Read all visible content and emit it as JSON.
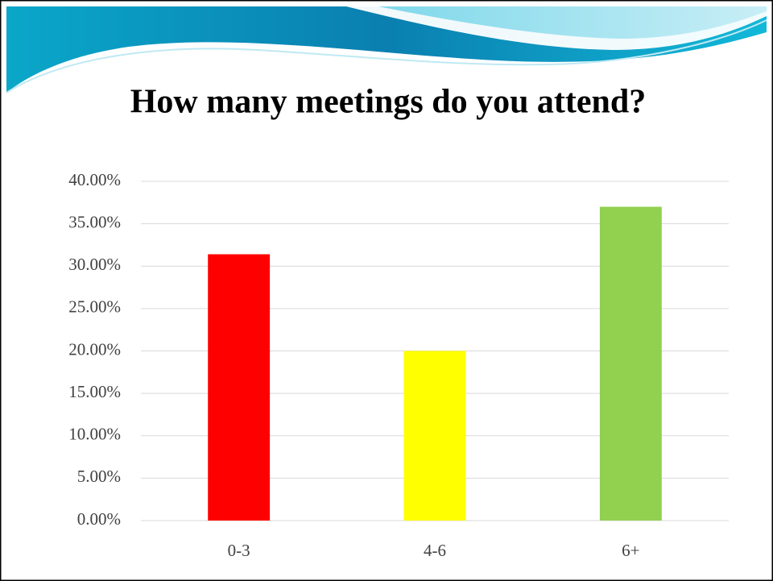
{
  "chart_data": {
    "type": "bar",
    "title": "How many meetings do you attend?",
    "categories": [
      "0-3",
      "4-6",
      "6+"
    ],
    "values": [
      31.4,
      20,
      37
    ],
    "colors": [
      "#ff0000",
      "#ffff00",
      "#92d050"
    ],
    "ylim": [
      0,
      40
    ],
    "yticks": [
      {
        "value": 0,
        "label": "0.00%"
      },
      {
        "value": 5,
        "label": "5.00%"
      },
      {
        "value": 10,
        "label": "10.00%"
      },
      {
        "value": 15,
        "label": "15.00%"
      },
      {
        "value": 20,
        "label": "20.00%"
      },
      {
        "value": 25,
        "label": "25.00%"
      },
      {
        "value": 30,
        "label": "30.00%"
      },
      {
        "value": 35,
        "label": "35.00%"
      },
      {
        "value": 40,
        "label": "40.00%"
      }
    ],
    "grid": true
  }
}
